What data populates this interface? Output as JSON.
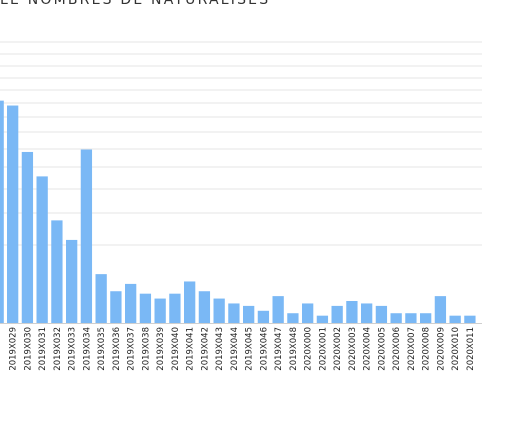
{
  "chart_data": {
    "type": "bar",
    "title": "LE NOMBRES DE NATURALISÉS",
    "xlabel": "",
    "ylabel": "",
    "color": "#7ab8f5",
    "grid": true,
    "ylim": [
      0,
      115
    ],
    "categories": [
      "2019X029",
      "2019X030",
      "2019X031",
      "2019X032",
      "2019X033",
      "2019X034",
      "2019X035",
      "2019X036",
      "2019X037",
      "2019X038",
      "2019X039",
      "2019X040",
      "2019X041",
      "2019X042",
      "2019X043",
      "2019X044",
      "2019X045",
      "2019X046",
      "2019X047",
      "2019X048",
      "2020X000",
      "2020X001",
      "2020X002",
      "2020X003",
      "2020X004",
      "2020X005",
      "2020X006",
      "2020X007",
      "2020X008",
      "2020X009",
      "2020X010",
      "2020X011"
    ],
    "values": [
      89,
      70,
      60,
      42,
      34,
      71,
      20,
      13,
      16,
      12,
      10,
      12,
      17,
      13,
      10,
      8,
      7,
      5,
      11,
      4,
      8,
      3,
      7,
      9,
      8,
      7,
      4,
      4,
      4,
      11,
      3,
      3
    ],
    "partial_first_bar_value": 91
  }
}
